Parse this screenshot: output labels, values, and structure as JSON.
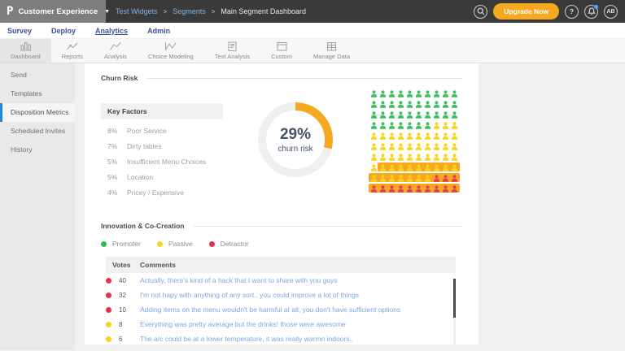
{
  "topbar": {
    "logo": "P",
    "workspace": "Customer Experience",
    "breadcrumb": [
      {
        "label": "Test Widgets",
        "link": true
      },
      {
        "label": "Segments",
        "link": true
      },
      {
        "label": "Main Segment Dashboard",
        "link": false
      }
    ],
    "upgrade_label": "Upgrade Now",
    "help_label": "?",
    "avatar_initials": "AB"
  },
  "nav": {
    "items": [
      {
        "label": "Survey",
        "active": false
      },
      {
        "label": "Deploy",
        "active": false
      },
      {
        "label": "Analytics",
        "active": true
      },
      {
        "label": "Admin",
        "active": false
      }
    ]
  },
  "tabs": {
    "items": [
      {
        "label": "Dashboard",
        "icon": "bar-chart-icon",
        "active": true
      },
      {
        "label": "Reports",
        "icon": "line-chart-icon",
        "active": false
      },
      {
        "label": "Analysis",
        "icon": "trend-line-icon",
        "active": false
      },
      {
        "label": "Choice Modeling",
        "icon": "peak-chart-icon",
        "active": false
      },
      {
        "label": "Text Analysis",
        "icon": "text-doc-icon",
        "active": false
      },
      {
        "label": "Custom",
        "icon": "custom-frame-icon",
        "active": false
      },
      {
        "label": "Manage Data",
        "icon": "data-table-icon",
        "active": false
      }
    ]
  },
  "sidebar": {
    "items": [
      {
        "label": "Send",
        "active": false
      },
      {
        "label": "Templates",
        "active": false
      },
      {
        "label": "Disposition Metrics",
        "active": true
      },
      {
        "label": "Scheduled Invites",
        "active": false
      },
      {
        "label": "History",
        "active": false
      }
    ]
  },
  "churn": {
    "title": "Churn Risk",
    "key_factors": {
      "title": "Key Factors",
      "rows": [
        {
          "pct": "8%",
          "label": "Poor Service"
        },
        {
          "pct": "7%",
          "label": "Dirty tables"
        },
        {
          "pct": "5%",
          "label": "Insufficient Menu Choices"
        },
        {
          "pct": "5%",
          "label": "Location"
        },
        {
          "pct": "4%",
          "label": "Pricey / Expensive"
        }
      ]
    },
    "donut": {
      "percent": 29,
      "value_label": "29%",
      "sub_label": "churn risk",
      "arc_color": "#f6a821",
      "track_color": "#efefef"
    },
    "pictogram": {
      "colors": {
        "green": "#3fbf61",
        "yellow": "#f8d41c",
        "red": "#e23f54",
        "highlight": "#f6a821"
      },
      "rows": [
        {
          "green": 10,
          "yellow": 0,
          "red": 0,
          "highlight_start": null
        },
        {
          "green": 10,
          "yellow": 0,
          "red": 0,
          "highlight_start": null
        },
        {
          "green": 10,
          "yellow": 0,
          "red": 0,
          "highlight_start": null
        },
        {
          "green": 7,
          "yellow": 3,
          "red": 0,
          "highlight_start": null
        },
        {
          "green": 0,
          "yellow": 10,
          "red": 0,
          "highlight_start": null
        },
        {
          "green": 0,
          "yellow": 10,
          "red": 0,
          "highlight_start": null
        },
        {
          "green": 0,
          "yellow": 10,
          "red": 0,
          "highlight_start": null
        },
        {
          "green": 0,
          "yellow": 10,
          "red": 0,
          "highlight_start": 1
        },
        {
          "green": 0,
          "yellow": 7,
          "red": 3,
          "highlight_start": 0
        },
        {
          "green": 0,
          "yellow": 0,
          "red": 10,
          "highlight_start": 0
        }
      ]
    }
  },
  "innovation": {
    "title": "Innovation & Co-Creation",
    "legend": [
      {
        "label": "Promoter",
        "color": "#2dbd4e"
      },
      {
        "label": "Passive",
        "color": "#f8d41c"
      },
      {
        "label": "Detractor",
        "color": "#e8304a"
      }
    ],
    "table": {
      "headers": {
        "votes": "Votes",
        "comments": "Comments"
      },
      "rows": [
        {
          "sentiment": "detractor",
          "dot_color": "#e8304a",
          "votes": "40",
          "comment": "Actually, there's kind of a hack that I want to share with you guys"
        },
        {
          "sentiment": "detractor",
          "dot_color": "#e8304a",
          "votes": "32",
          "comment": "I'm not hapy with anything of any sort.. you could improve a lot of things"
        },
        {
          "sentiment": "detractor",
          "dot_color": "#e8304a",
          "votes": "10",
          "comment": "Adding items on the menu wouldn't be harmful at all, you don't have sufficient options"
        },
        {
          "sentiment": "passive",
          "dot_color": "#f8d41c",
          "votes": "8",
          "comment": "Everything was pretty average but the drinks! those were awesome"
        },
        {
          "sentiment": "passive",
          "dot_color": "#f8d41c",
          "votes": "6",
          "comment": "The a/c could be at a lower temperature, it was really warmn indoors.."
        }
      ]
    }
  }
}
